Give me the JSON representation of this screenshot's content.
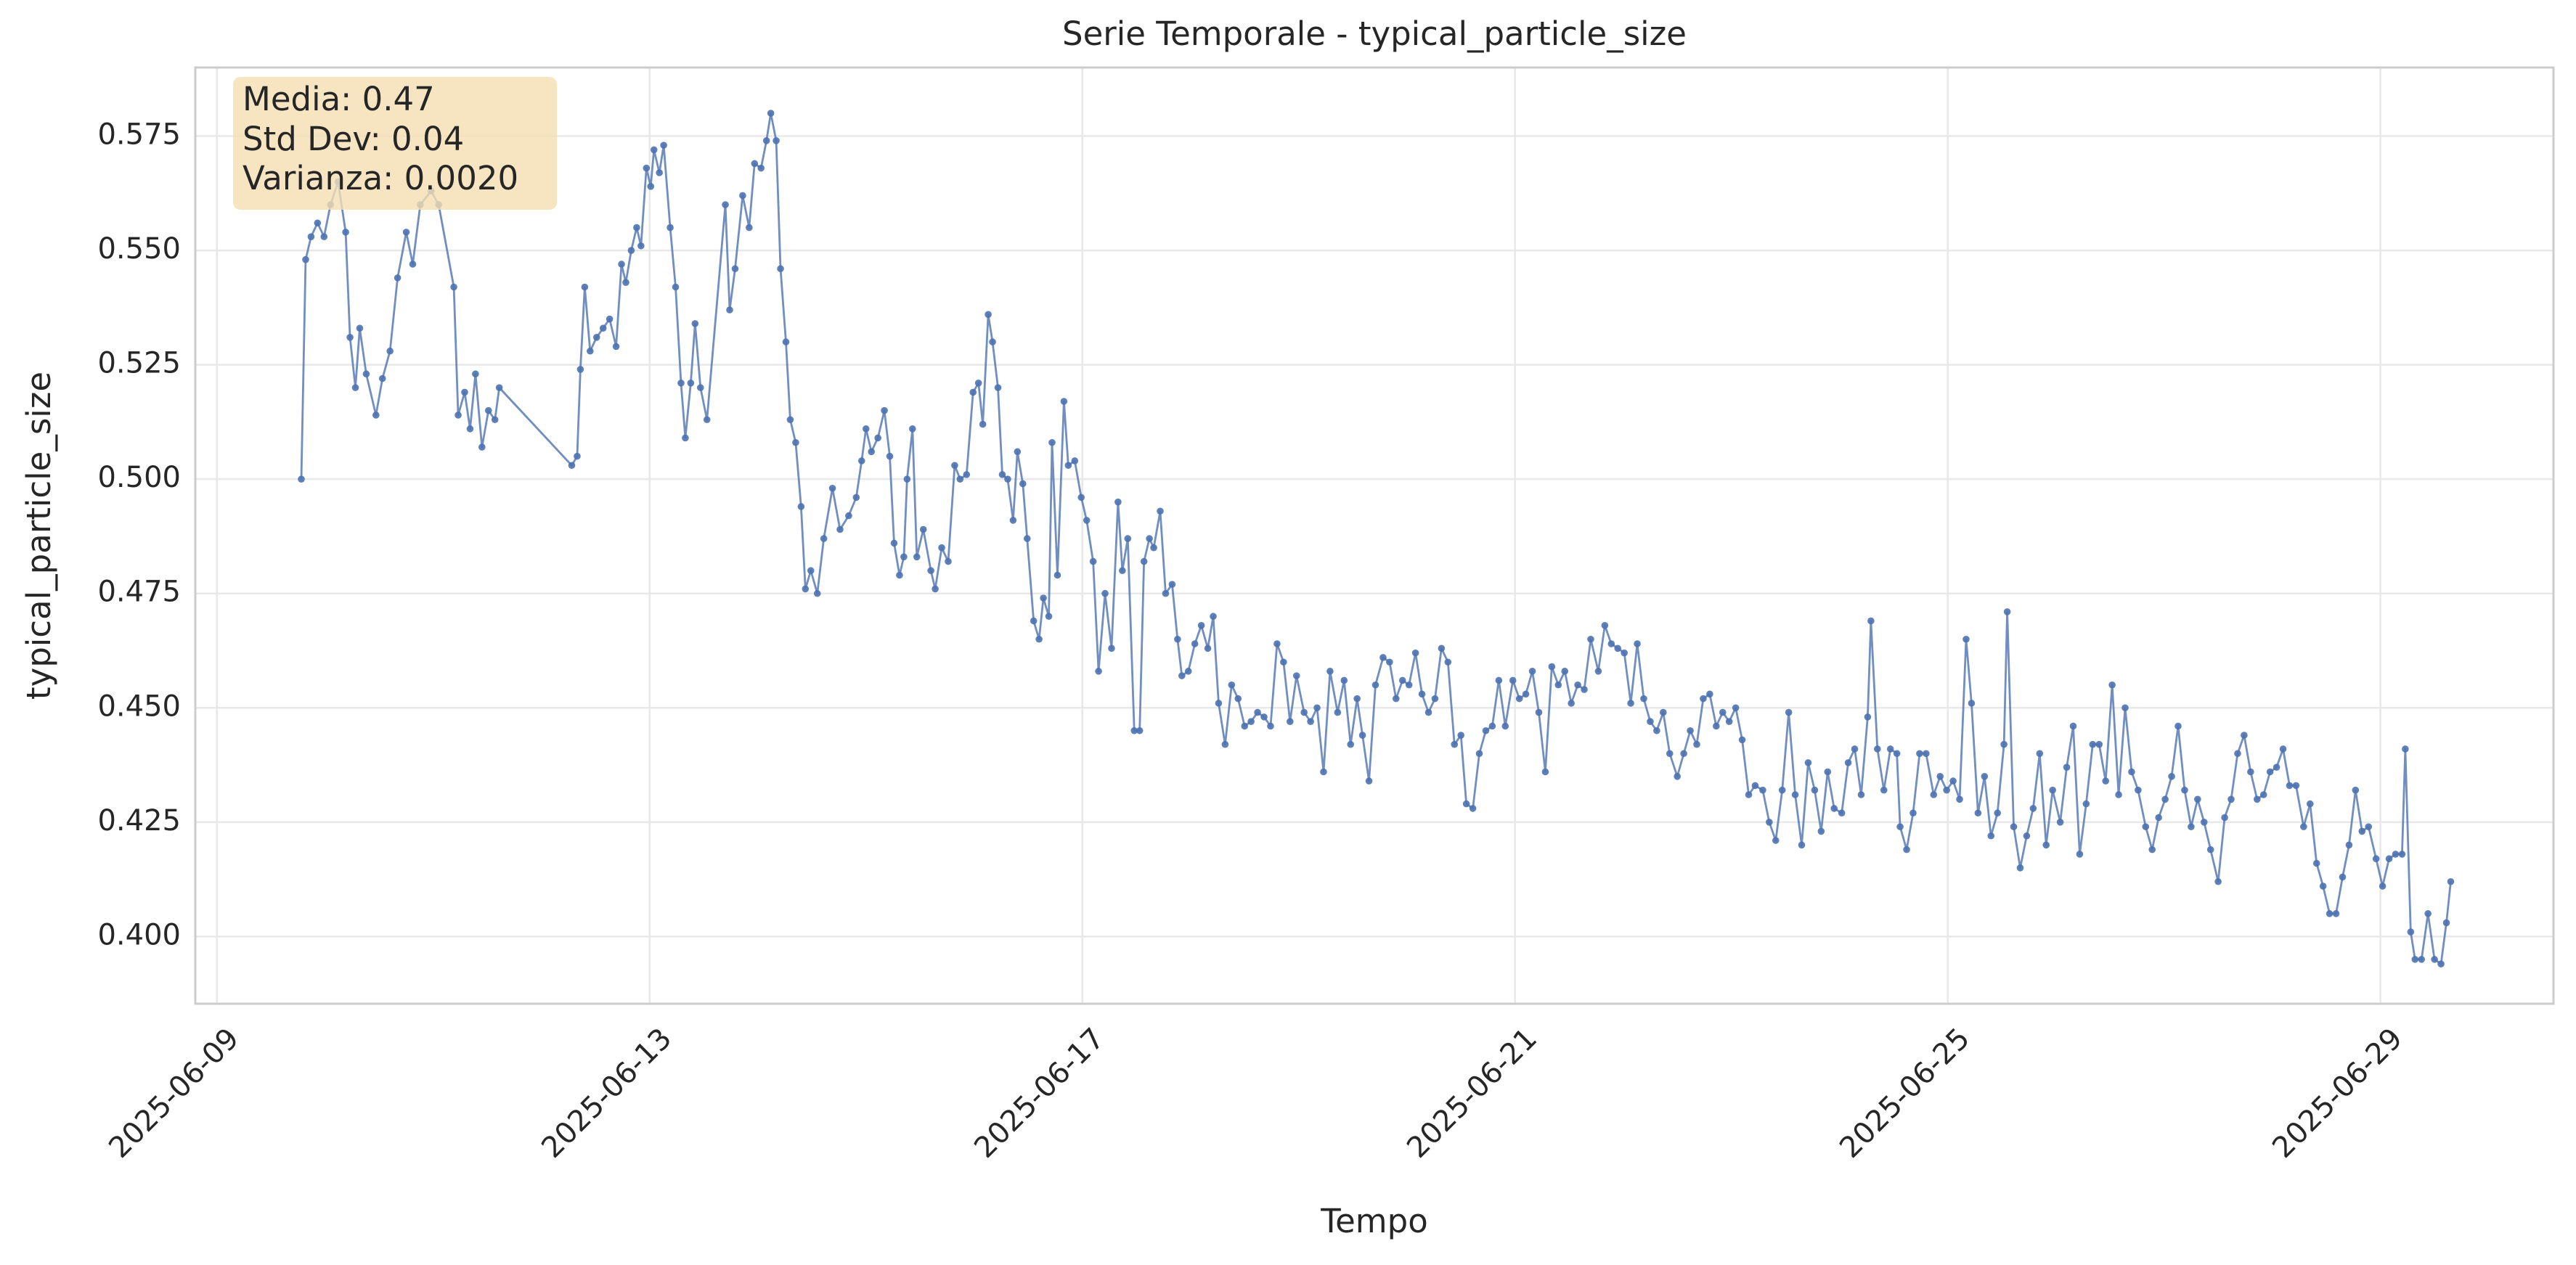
{
  "chart_data": {
    "type": "line",
    "title": "Serie Temporale - typical_particle_size",
    "x_label": "Tempo",
    "y_label": "typical_particle_size",
    "annotations": [
      "Media: 0.47",
      "Std Dev: 0.04",
      "Varianza: 0.0020"
    ],
    "annotation_color": "#f5deb3",
    "grid": true,
    "xlim": [
      8.8,
      30.6
    ],
    "xticks": [
      {
        "value": 9,
        "label": "2025-06-09"
      },
      {
        "value": 13,
        "label": "2025-06-13"
      },
      {
        "value": 17,
        "label": "2025-06-17"
      },
      {
        "value": 21,
        "label": "2025-06-21"
      },
      {
        "value": 25,
        "label": "2025-06-25"
      },
      {
        "value": 29,
        "label": "2025-06-29"
      }
    ],
    "ylim": [
      0.3853,
      0.59
    ],
    "yticks": [
      {
        "value": 0.4,
        "label": "0.400"
      },
      {
        "value": 0.425,
        "label": "0.425"
      },
      {
        "value": 0.45,
        "label": "0.450"
      },
      {
        "value": 0.475,
        "label": "0.475"
      },
      {
        "value": 0.5,
        "label": "0.500"
      },
      {
        "value": 0.525,
        "label": "0.525"
      },
      {
        "value": 0.55,
        "label": "0.550"
      },
      {
        "value": 0.575,
        "label": "0.575"
      }
    ],
    "x": [
      9.78,
      9.82,
      9.87,
      9.93,
      9.99,
      10.05,
      10.12,
      10.19,
      10.23,
      10.28,
      10.32,
      10.38,
      10.47,
      10.53,
      10.6,
      10.67,
      10.75,
      10.81,
      10.88,
      10.98,
      11.05,
      11.19,
      11.23,
      11.29,
      11.34,
      11.39,
      11.45,
      11.51,
      11.57,
      11.61,
      12.28,
      12.33,
      12.36,
      12.4,
      12.45,
      12.51,
      12.57,
      12.63,
      12.69,
      12.74,
      12.78,
      12.83,
      12.88,
      12.92,
      12.97,
      13.01,
      13.04,
      13.09,
      13.13,
      13.19,
      13.24,
      13.29,
      13.33,
      13.38,
      13.42,
      13.47,
      13.53,
      13.7,
      13.74,
      13.79,
      13.86,
      13.92,
      13.97,
      14.03,
      14.08,
      14.12,
      14.17,
      14.21,
      14.26,
      14.3,
      14.35,
      14.4,
      14.44,
      14.49,
      14.55,
      14.61,
      14.69,
      14.76,
      14.84,
      14.91,
      14.96,
      15.0,
      15.05,
      15.11,
      15.17,
      15.22,
      15.26,
      15.31,
      15.35,
      15.38,
      15.43,
      15.47,
      15.53,
      15.6,
      15.64,
      15.7,
      15.76,
      15.82,
      15.87,
      15.93,
      15.99,
      16.04,
      16.08,
      16.13,
      16.17,
      16.22,
      16.26,
      16.31,
      16.36,
      16.4,
      16.45,
      16.49,
      16.55,
      16.6,
      16.64,
      16.69,
      16.72,
      16.77,
      16.83,
      16.87,
      16.93,
      16.99,
      17.04,
      17.1,
      17.15,
      17.21,
      17.27,
      17.33,
      17.37,
      17.42,
      17.48,
      17.53,
      17.57,
      17.62,
      17.66,
      17.72,
      17.77,
      17.83,
      17.88,
      17.92,
      17.98,
      18.04,
      18.1,
      18.16,
      18.21,
      18.26,
      18.32,
      18.38,
      18.44,
      18.5,
      18.56,
      18.62,
      18.68,
      18.74,
      18.8,
      18.86,
      18.92,
      18.98,
      19.05,
      19.11,
      19.17,
      19.23,
      19.29,
      19.36,
      19.42,
      19.48,
      19.54,
      19.59,
      19.65,
      19.71,
      19.78,
      19.84,
      19.9,
      19.96,
      20.02,
      20.08,
      20.14,
      20.2,
      20.26,
      20.32,
      20.38,
      20.44,
      20.5,
      20.55,
      20.61,
      20.67,
      20.73,
      20.79,
      20.85,
      20.91,
      20.98,
      21.04,
      21.1,
      21.16,
      21.22,
      21.28,
      21.34,
      21.4,
      21.46,
      21.52,
      21.58,
      21.64,
      21.7,
      21.77,
      21.83,
      21.89,
      21.95,
      22.01,
      22.07,
      22.13,
      22.19,
      22.25,
      22.31,
      22.37,
      22.43,
      22.5,
      22.56,
      22.62,
      22.68,
      22.74,
      22.8,
      22.86,
      22.92,
      22.98,
      23.04,
      23.1,
      23.16,
      23.22,
      23.29,
      23.35,
      23.41,
      23.47,
      23.53,
      23.59,
      23.65,
      23.71,
      23.77,
      23.83,
      23.89,
      23.95,
      24.02,
      24.08,
      24.14,
      24.2,
      24.26,
      24.29,
      24.35,
      24.41,
      24.47,
      24.53,
      24.56,
      24.62,
      24.68,
      24.74,
      24.8,
      24.87,
      24.93,
      24.99,
      25.05,
      25.11,
      25.17,
      25.22,
      25.28,
      25.34,
      25.4,
      25.46,
      25.52,
      25.55,
      25.61,
      25.67,
      25.73,
      25.79,
      25.85,
      25.91,
      25.97,
      26.04,
      26.1,
      26.16,
      26.22,
      26.28,
      26.34,
      26.4,
      26.46,
      26.52,
      26.58,
      26.64,
      26.7,
      26.76,
      26.83,
      26.89,
      26.95,
      27.01,
      27.07,
      27.13,
      27.19,
      27.25,
      27.31,
      27.37,
      27.43,
      27.5,
      27.56,
      27.62,
      27.68,
      27.74,
      27.8,
      27.86,
      27.92,
      27.98,
      28.04,
      28.1,
      28.16,
      28.22,
      28.29,
      28.35,
      28.41,
      28.47,
      28.53,
      28.59,
      28.65,
      28.71,
      28.77,
      28.83,
      28.89,
      28.96,
      29.02,
      29.08,
      29.14,
      29.2,
      29.23,
      29.28,
      29.32,
      29.38,
      29.44,
      29.5,
      29.56,
      29.61,
      29.65
    ],
    "series": [
      {
        "name": "typical_particle_size",
        "color": "#4c72b0",
        "values": [
          0.5,
          0.548,
          0.553,
          0.556,
          0.553,
          0.56,
          0.565,
          0.554,
          0.531,
          0.52,
          0.533,
          0.523,
          0.514,
          0.522,
          0.528,
          0.544,
          0.554,
          0.547,
          0.56,
          0.563,
          0.56,
          0.542,
          0.514,
          0.519,
          0.511,
          0.523,
          0.507,
          0.515,
          0.513,
          0.52,
          0.503,
          0.505,
          0.524,
          0.542,
          0.528,
          0.531,
          0.533,
          0.535,
          0.529,
          0.547,
          0.543,
          0.55,
          0.555,
          0.551,
          0.568,
          0.564,
          0.572,
          0.567,
          0.573,
          0.555,
          0.542,
          0.521,
          0.509,
          0.521,
          0.534,
          0.52,
          0.513,
          0.56,
          0.537,
          0.546,
          0.562,
          0.555,
          0.569,
          0.568,
          0.574,
          0.58,
          0.574,
          0.546,
          0.53,
          0.513,
          0.508,
          0.494,
          0.476,
          0.48,
          0.475,
          0.487,
          0.498,
          0.489,
          0.492,
          0.496,
          0.504,
          0.511,
          0.506,
          0.509,
          0.515,
          0.505,
          0.486,
          0.479,
          0.483,
          0.5,
          0.511,
          0.483,
          0.489,
          0.48,
          0.476,
          0.485,
          0.482,
          0.503,
          0.5,
          0.501,
          0.519,
          0.521,
          0.512,
          0.536,
          0.53,
          0.52,
          0.501,
          0.5,
          0.491,
          0.506,
          0.499,
          0.487,
          0.469,
          0.465,
          0.474,
          0.47,
          0.508,
          0.479,
          0.517,
          0.503,
          0.504,
          0.496,
          0.491,
          0.482,
          0.458,
          0.475,
          0.463,
          0.495,
          0.48,
          0.487,
          0.445,
          0.445,
          0.482,
          0.487,
          0.485,
          0.493,
          0.475,
          0.477,
          0.465,
          0.457,
          0.458,
          0.464,
          0.468,
          0.463,
          0.47,
          0.451,
          0.442,
          0.455,
          0.452,
          0.446,
          0.447,
          0.449,
          0.448,
          0.446,
          0.464,
          0.46,
          0.447,
          0.457,
          0.449,
          0.447,
          0.45,
          0.436,
          0.458,
          0.449,
          0.456,
          0.442,
          0.452,
          0.444,
          0.434,
          0.455,
          0.461,
          0.46,
          0.452,
          0.456,
          0.455,
          0.462,
          0.453,
          0.449,
          0.452,
          0.463,
          0.46,
          0.442,
          0.444,
          0.429,
          0.428,
          0.44,
          0.445,
          0.446,
          0.456,
          0.446,
          0.456,
          0.452,
          0.453,
          0.458,
          0.449,
          0.436,
          0.459,
          0.455,
          0.458,
          0.451,
          0.455,
          0.454,
          0.465,
          0.458,
          0.468,
          0.464,
          0.463,
          0.462,
          0.451,
          0.464,
          0.452,
          0.447,
          0.445,
          0.449,
          0.44,
          0.435,
          0.44,
          0.445,
          0.442,
          0.452,
          0.453,
          0.446,
          0.449,
          0.447,
          0.45,
          0.443,
          0.431,
          0.433,
          0.432,
          0.425,
          0.421,
          0.432,
          0.449,
          0.431,
          0.42,
          0.438,
          0.432,
          0.423,
          0.436,
          0.428,
          0.427,
          0.438,
          0.441,
          0.431,
          0.448,
          0.469,
          0.441,
          0.432,
          0.441,
          0.44,
          0.424,
          0.419,
          0.427,
          0.44,
          0.44,
          0.431,
          0.435,
          0.432,
          0.434,
          0.43,
          0.465,
          0.451,
          0.427,
          0.435,
          0.422,
          0.427,
          0.442,
          0.471,
          0.424,
          0.415,
          0.422,
          0.428,
          0.44,
          0.42,
          0.432,
          0.425,
          0.437,
          0.446,
          0.418,
          0.429,
          0.442,
          0.442,
          0.434,
          0.455,
          0.431,
          0.45,
          0.436,
          0.432,
          0.424,
          0.419,
          0.426,
          0.43,
          0.435,
          0.446,
          0.432,
          0.424,
          0.43,
          0.425,
          0.419,
          0.412,
          0.426,
          0.43,
          0.44,
          0.444,
          0.436,
          0.43,
          0.431,
          0.436,
          0.437,
          0.441,
          0.433,
          0.433,
          0.424,
          0.429,
          0.416,
          0.411,
          0.405,
          0.405,
          0.413,
          0.42,
          0.432,
          0.423,
          0.424,
          0.417,
          0.411,
          0.417,
          0.418,
          0.418,
          0.441,
          0.401,
          0.395,
          0.395,
          0.405,
          0.395,
          0.394,
          0.403,
          0.412
        ]
      }
    ]
  }
}
